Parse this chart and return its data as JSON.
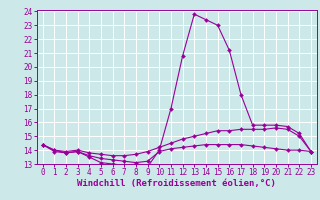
{
  "title": "",
  "xlabel": "Windchill (Refroidissement éolien,°C)",
  "x": [
    0,
    1,
    2,
    3,
    4,
    5,
    6,
    7,
    8,
    9,
    10,
    11,
    12,
    13,
    14,
    15,
    16,
    17,
    18,
    19,
    20,
    21,
    22,
    23
  ],
  "line1": [
    14.4,
    13.9,
    13.8,
    13.9,
    13.5,
    13.1,
    13.0,
    12.9,
    12.9,
    12.8,
    14.0,
    17.0,
    20.8,
    23.8,
    23.4,
    23.0,
    21.2,
    18.0,
    15.8,
    15.8,
    15.8,
    15.7,
    15.2,
    13.9
  ],
  "line2": [
    14.4,
    14.0,
    13.8,
    13.9,
    13.6,
    13.4,
    13.3,
    13.2,
    13.1,
    13.2,
    13.9,
    14.1,
    14.2,
    14.3,
    14.4,
    14.4,
    14.4,
    14.4,
    14.3,
    14.2,
    14.1,
    14.0,
    14.0,
    13.9
  ],
  "line3": [
    14.4,
    14.0,
    13.9,
    14.0,
    13.8,
    13.7,
    13.6,
    13.6,
    13.7,
    13.9,
    14.2,
    14.5,
    14.8,
    15.0,
    15.2,
    15.4,
    15.4,
    15.5,
    15.5,
    15.5,
    15.6,
    15.5,
    15.0,
    13.9
  ],
  "line_color": "#990099",
  "bg_color": "#cce8e8",
  "grid_color": "#ffffff",
  "ylim": [
    13,
    24
  ],
  "xlim": [
    -0.5,
    23.5
  ],
  "yticks": [
    13,
    14,
    15,
    16,
    17,
    18,
    19,
    20,
    21,
    22,
    23,
    24
  ],
  "xticks": [
    0,
    1,
    2,
    3,
    4,
    5,
    6,
    7,
    8,
    9,
    10,
    11,
    12,
    13,
    14,
    15,
    16,
    17,
    18,
    19,
    20,
    21,
    22,
    23
  ],
  "markersize": 2.0,
  "linewidth": 0.8,
  "tick_fontsize": 5.5,
  "xlabel_fontsize": 6.5
}
